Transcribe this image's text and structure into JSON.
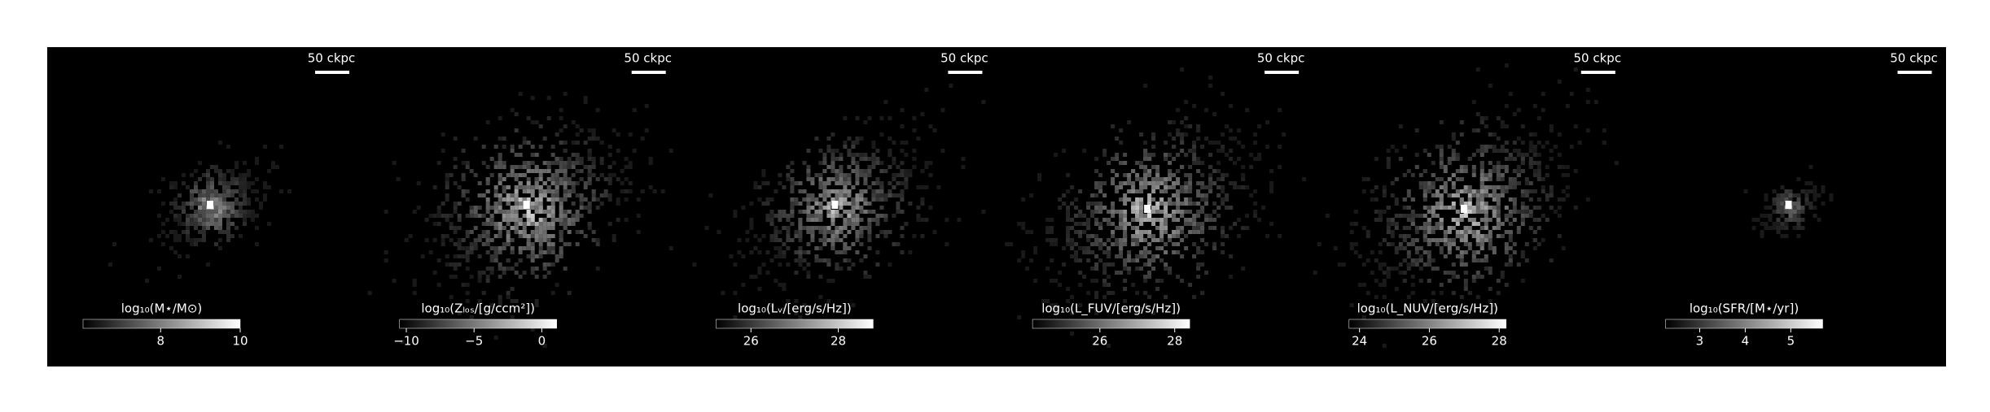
{
  "chart_data": [
    {
      "type": "image",
      "scalebar_label": "50 ckpc",
      "colorbar_label": "log₁₀(M⋆/M⊙)",
      "clim": [
        6.05,
        10.0
      ],
      "cticks": [
        8,
        10
      ]
    },
    {
      "type": "image",
      "scalebar_label": "50 ckpc",
      "colorbar_label": "log₁₀(Zₗₒₛ/[g/ccm²])",
      "clim": [
        -10.5,
        1.1
      ],
      "cticks": [
        {
          "value": -10,
          "label": "−10"
        },
        {
          "value": -5,
          "label": "−5"
        },
        0
      ]
    },
    {
      "type": "image",
      "scalebar_label": "50 ckpc",
      "colorbar_label": "log₁₀(Lᵥ/[erg/s/Hz])",
      "clim": [
        25.2,
        28.8
      ],
      "cticks": [
        26,
        28
      ]
    },
    {
      "type": "image",
      "scalebar_label": "50 ckpc",
      "colorbar_label": "log₁₀(L_FUV/[erg/s/Hz])",
      "clim": [
        24.2,
        28.4
      ],
      "cticks": [
        26,
        28
      ]
    },
    {
      "type": "image",
      "scalebar_label": "50 ckpc",
      "colorbar_label": "log₁₀(L_NUV/[erg/s/Hz])",
      "clim": [
        23.7,
        28.2
      ],
      "cticks": [
        24,
        26,
        28
      ]
    },
    {
      "type": "image",
      "scalebar_label": "50 ckpc",
      "colorbar_label": "log₁₀(SFR/[M⋆/yr])",
      "clim": [
        2.25,
        5.7
      ],
      "cticks": [
        3,
        4,
        5
      ]
    }
  ]
}
